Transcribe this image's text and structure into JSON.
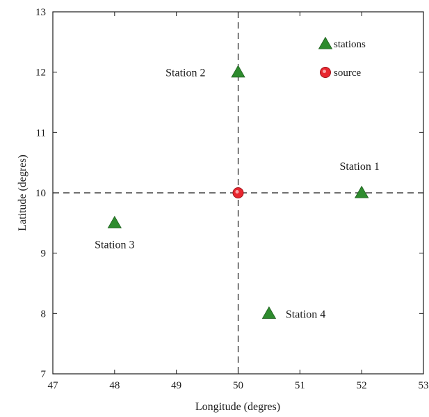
{
  "chart_data": {
    "type": "scatter",
    "title": "",
    "xlabel": "Longitude (degres)",
    "ylabel": "Latitude (degres)",
    "xlim": [
      47,
      53
    ],
    "ylim": [
      7,
      13
    ],
    "x_ticks": [
      "47",
      "48",
      "49",
      "50",
      "51",
      "52",
      "53"
    ],
    "y_ticks": [
      "7",
      "8",
      "9",
      "10",
      "11",
      "12",
      "13"
    ],
    "grid": false,
    "reference_lines": {
      "x": 50,
      "y": 10,
      "style": "dashed"
    },
    "legend": {
      "placement": "top-right",
      "entries": [
        {
          "label": "stations",
          "marker": "triangle",
          "color": "#2e8b2e"
        },
        {
          "label": "source",
          "marker": "circle",
          "color": "#e8262f"
        }
      ]
    },
    "series": [
      {
        "name": "stations",
        "marker": "triangle",
        "color": "#2e8b2e",
        "points": [
          {
            "x": 52,
            "y": 10,
            "label": "Station 1"
          },
          {
            "x": 50,
            "y": 12,
            "label": "Station 2"
          },
          {
            "x": 48,
            "y": 9.5,
            "label": "Station 3"
          },
          {
            "x": 50.5,
            "y": 8,
            "label": "Station 4"
          }
        ]
      },
      {
        "name": "source",
        "marker": "circle",
        "color": "#e8262f",
        "points": [
          {
            "x": 50,
            "y": 10
          }
        ]
      }
    ]
  }
}
